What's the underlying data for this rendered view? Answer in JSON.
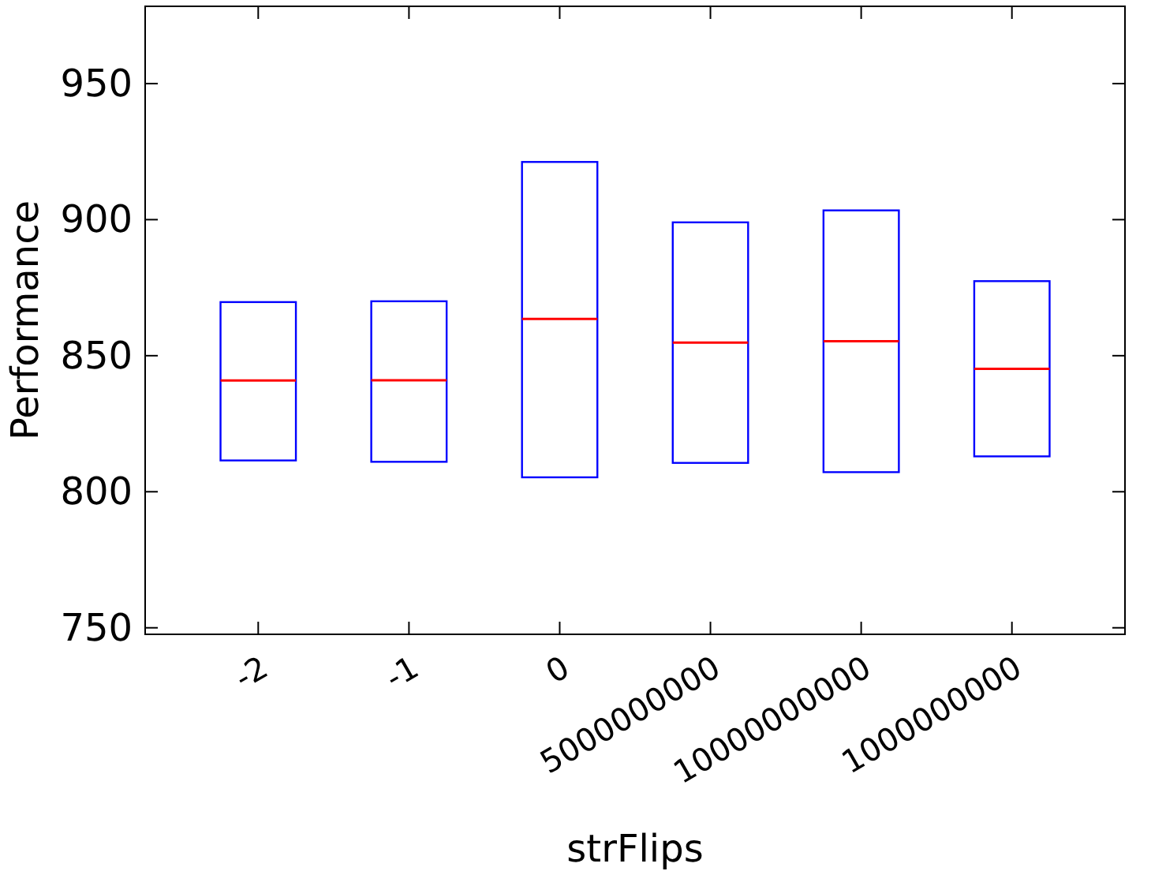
{
  "chart_data": {
    "type": "box",
    "xlabel": "strFlips",
    "ylabel": "Performance",
    "categories": [
      "-2",
      "-1",
      "0",
      "5000000000",
      "10000000000",
      "1000000000"
    ],
    "ylim": [
      747.6,
      978.4
    ],
    "yticks": [
      750,
      800,
      850,
      900,
      950
    ],
    "grid": false,
    "series": [
      {
        "color": "#0000ff",
        "boxes": [
          {
            "low": 811.5,
            "q1": 811.5,
            "median": 840.9,
            "q3": 869.7,
            "high": 869.7
          },
          {
            "low": 811,
            "q1": 811,
            "median": 841,
            "q3": 870,
            "high": 870
          },
          {
            "low": 805.3,
            "q1": 805.3,
            "median": 863.5,
            "q3": 921.2,
            "high": 921.2
          },
          {
            "low": 810.6,
            "q1": 810.6,
            "median": 854.8,
            "q3": 899,
            "high": 899
          },
          {
            "low": 807.2,
            "q1": 807.2,
            "median": 855.3,
            "q3": 903.4,
            "high": 903.4
          },
          {
            "low": 813,
            "q1": 813,
            "median": 845.2,
            "q3": 877.4,
            "high": 877.4
          }
        ]
      }
    ]
  }
}
